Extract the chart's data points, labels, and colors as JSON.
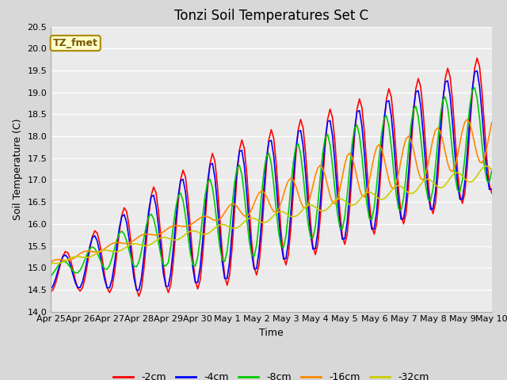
{
  "title": "Tonzi Soil Temperatures Set C",
  "xlabel": "Time",
  "ylabel": "Soil Temperature (C)",
  "annotation": "TZ_fmet",
  "ylim": [
    14.0,
    20.5
  ],
  "xtick_labels": [
    "Apr 25",
    "Apr 26",
    "Apr 27",
    "Apr 28",
    "Apr 29",
    "Apr 30",
    "May 1",
    "May 2",
    "May 3",
    "May 4",
    "May 5",
    "May 6",
    "May 7",
    "May 8",
    "May 9",
    "May 10"
  ],
  "series": [
    {
      "label": "-2cm",
      "color": "#ff0000"
    },
    {
      "label": "-4cm",
      "color": "#0000ff"
    },
    {
      "label": "-8cm",
      "color": "#00cc00"
    },
    {
      "label": "-16cm",
      "color": "#ff8800"
    },
    {
      "label": "-32cm",
      "color": "#cccc00"
    }
  ],
  "fig_bg": "#d8d8d8",
  "plot_bg": "#ebebeb",
  "grid_color": "#ffffff",
  "title_fontsize": 12,
  "axis_fontsize": 9,
  "tick_fontsize": 8,
  "linewidth": 1.2
}
